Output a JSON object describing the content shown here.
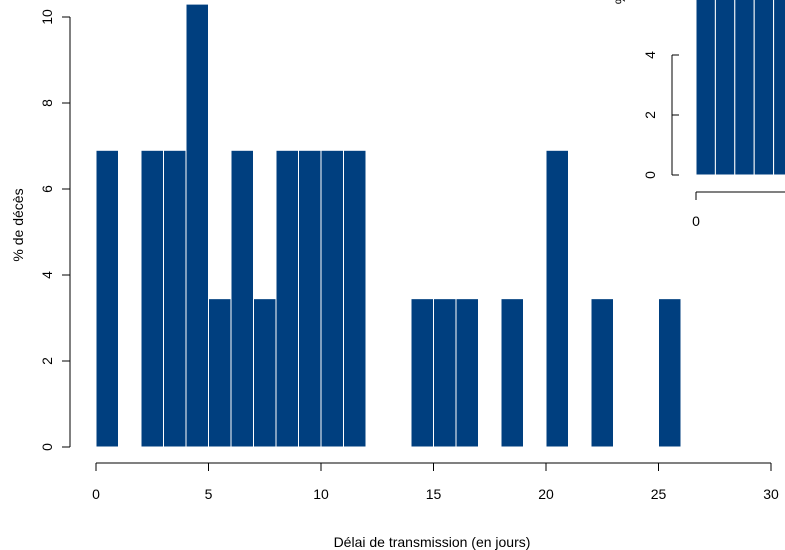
{
  "chart_data": [
    {
      "type": "bar",
      "xlabel": "Délai de transmission (en jours)",
      "ylabel": "% de décès",
      "xlim": [
        0,
        30
      ],
      "ylim": [
        0,
        10
      ],
      "x_ticks": [
        "0",
        "5",
        "10",
        "15",
        "20",
        "25",
        "30"
      ],
      "y_ticks": [
        "0",
        "2",
        "4",
        "6",
        "8",
        "10"
      ],
      "bar_color": "#003F7F",
      "bars": [
        {
          "x0": 0,
          "x1": 1,
          "value": 6.9
        },
        {
          "x0": 2,
          "x1": 3,
          "value": 6.9
        },
        {
          "x0": 3,
          "x1": 4,
          "value": 6.9
        },
        {
          "x0": 4,
          "x1": 5,
          "value": 10.3
        },
        {
          "x0": 5,
          "x1": 6,
          "value": 3.45
        },
        {
          "x0": 6,
          "x1": 7,
          "value": 6.9
        },
        {
          "x0": 7,
          "x1": 8,
          "value": 3.45
        },
        {
          "x0": 8,
          "x1": 9,
          "value": 6.9
        },
        {
          "x0": 9,
          "x1": 10,
          "value": 6.9
        },
        {
          "x0": 10,
          "x1": 11,
          "value": 6.9
        },
        {
          "x0": 11,
          "x1": 12,
          "value": 6.9
        },
        {
          "x0": 14,
          "x1": 15,
          "value": 3.45
        },
        {
          "x0": 15,
          "x1": 16,
          "value": 3.45
        },
        {
          "x0": 16,
          "x1": 17,
          "value": 3.45
        },
        {
          "x0": 18,
          "x1": 19,
          "value": 3.45
        },
        {
          "x0": 20,
          "x1": 21,
          "value": 6.9
        },
        {
          "x0": 22,
          "x1": 23,
          "value": 3.45
        },
        {
          "x0": 25,
          "x1": 26,
          "value": 3.45
        }
      ]
    },
    {
      "type": "bar",
      "partially_visible": true,
      "ylabel": "%",
      "x_ticks": [
        "0"
      ],
      "y_ticks": [
        "0",
        "2",
        "4"
      ],
      "bar_color": "#003F7F",
      "bars": [
        {
          "value": 6.4
        },
        {
          "value": 6.4
        },
        {
          "value": 6.4
        },
        {
          "value": 6.4
        },
        {
          "value": 6.4
        }
      ]
    }
  ]
}
